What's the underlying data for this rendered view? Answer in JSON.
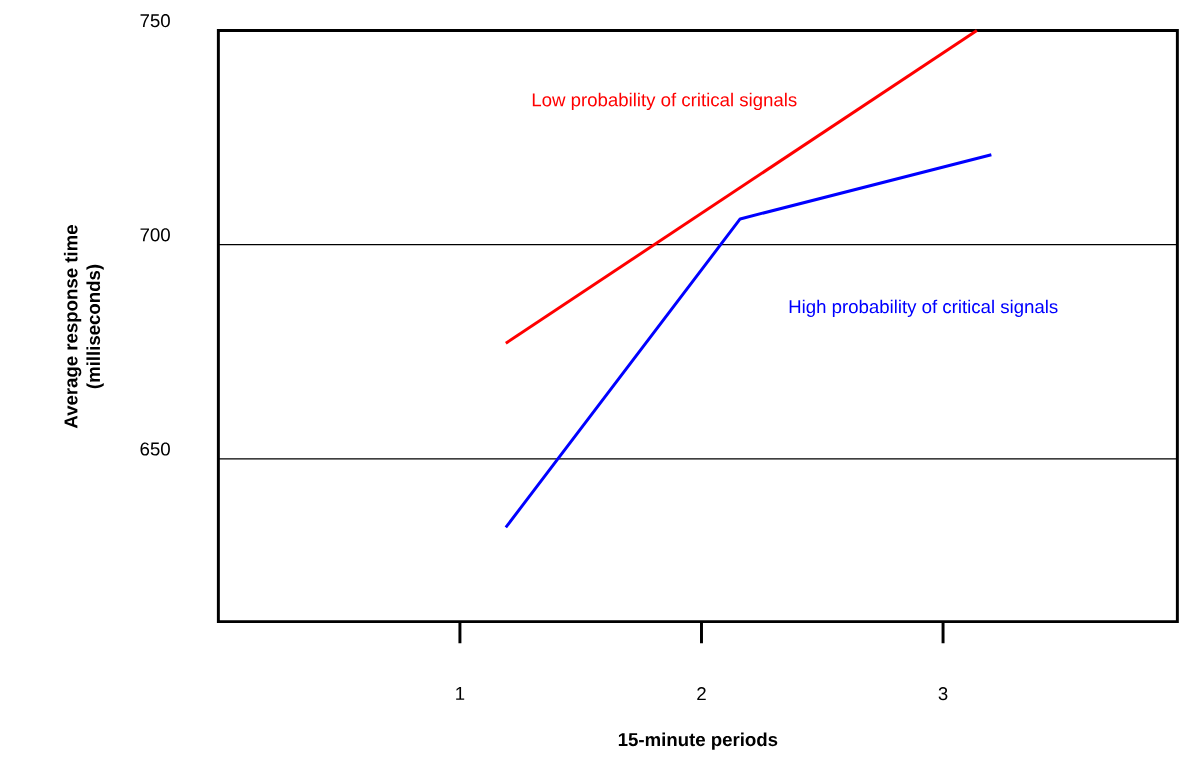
{
  "chart_data": {
    "type": "line",
    "xlabel": "15-minute periods",
    "ylabel": "Average response time\n(milliseconds)",
    "xlim": [
      0,
      3.97
    ],
    "xticks": [
      1,
      2,
      3
    ],
    "ylim": [
      612,
      750
    ],
    "yticks": [
      650,
      700,
      750
    ],
    "grid": "y",
    "series": [
      {
        "name": "Low probability of critical signals",
        "color": "#ff0000",
        "x": [
          1.19,
          3.14
        ],
        "values": [
          677,
          750
        ]
      },
      {
        "name": "High probability of critical signals",
        "color": "#0000ff",
        "x": [
          1.19,
          2.16,
          3.2
        ],
        "values": [
          634,
          706,
          721
        ]
      }
    ]
  }
}
